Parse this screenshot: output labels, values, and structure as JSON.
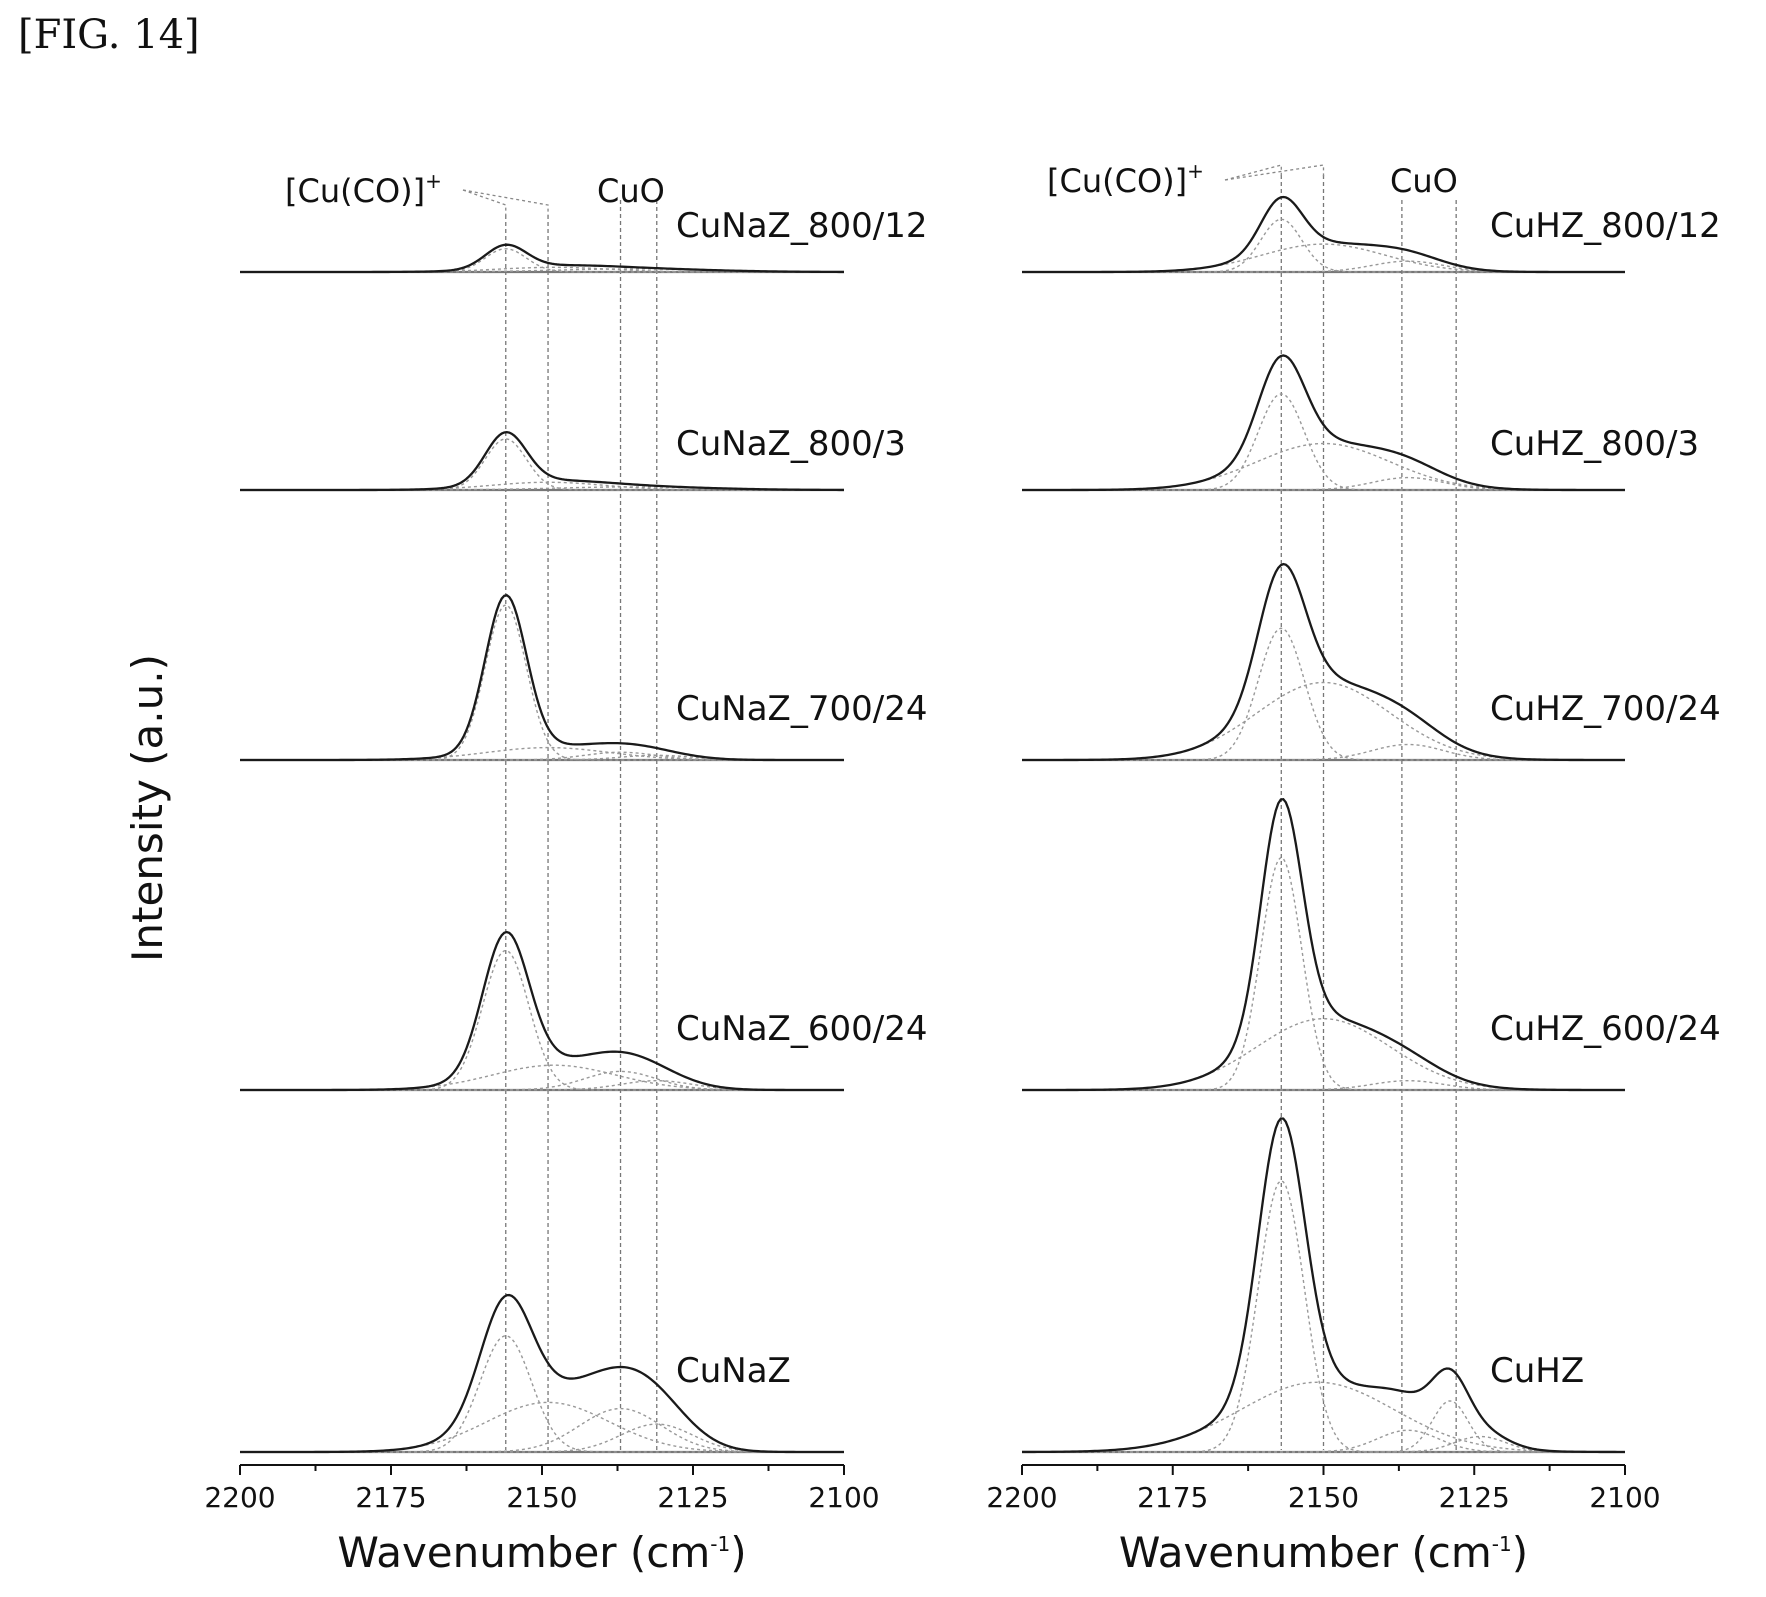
{
  "figure_label": "[FIG. 14]",
  "y_axis_title": "Intensity (a.u.)",
  "chart_data": [
    {
      "type": "line",
      "panel": "left",
      "xlabel": "Wavenumber (cm",
      "xlabel_sup": "-1",
      "xlabel_close": ")",
      "xlim": [
        2200,
        2100
      ],
      "x_ticks": [
        "2200",
        "2175",
        "2150",
        "2125",
        "2100"
      ],
      "annotations": {
        "cu_co_label": "[Cu(CO)]",
        "cu_co_sup": "+",
        "cuo_label": "CuO",
        "cu_co_positions": [
          2156,
          2149
        ],
        "cuo_positions": [
          2137,
          2131
        ]
      },
      "spectra": [
        {
          "name": "CuNaZ_800/12",
          "peaks": [
            {
              "center": 2156,
              "height": 0.15,
              "fwhm": 8
            },
            {
              "center": 2148,
              "height": 0.03,
              "fwhm": 22
            },
            {
              "center": 2135,
              "height": 0.02,
              "fwhm": 30
            }
          ]
        },
        {
          "name": "CuNaZ_800/3",
          "peaks": [
            {
              "center": 2156,
              "height": 0.33,
              "fwhm": 8
            },
            {
              "center": 2149,
              "height": 0.05,
              "fwhm": 22
            },
            {
              "center": 2135,
              "height": 0.02,
              "fwhm": 30
            }
          ]
        },
        {
          "name": "CuNaZ_700/24",
          "peaks": [
            {
              "center": 2156,
              "height": 1.0,
              "fwhm": 8
            },
            {
              "center": 2149,
              "height": 0.08,
              "fwhm": 24
            },
            {
              "center": 2137,
              "height": 0.05,
              "fwhm": 14
            },
            {
              "center": 2131,
              "height": 0.03,
              "fwhm": 14
            }
          ]
        },
        {
          "name": "CuNaZ_600/24",
          "peaks": [
            {
              "center": 2156,
              "height": 0.9,
              "fwhm": 9
            },
            {
              "center": 2148,
              "height": 0.16,
              "fwhm": 24
            },
            {
              "center": 2137,
              "height": 0.12,
              "fwhm": 14
            },
            {
              "center": 2131,
              "height": 0.06,
              "fwhm": 14
            }
          ]
        },
        {
          "name": "CuNaZ",
          "peaks": [
            {
              "center": 2156,
              "height": 0.75,
              "fwhm": 10
            },
            {
              "center": 2149,
              "height": 0.32,
              "fwhm": 24
            },
            {
              "center": 2137,
              "height": 0.28,
              "fwhm": 16
            },
            {
              "center": 2131,
              "height": 0.18,
              "fwhm": 14
            }
          ]
        }
      ]
    },
    {
      "type": "line",
      "panel": "right",
      "xlabel": "Wavenumber (cm",
      "xlabel_sup": "-1",
      "xlabel_close": ")",
      "xlim": [
        2200,
        2100
      ],
      "x_ticks": [
        "2200",
        "2175",
        "2150",
        "2125",
        "2100"
      ],
      "annotations": {
        "cu_co_label": "[Cu(CO)]",
        "cu_co_sup": "+",
        "cuo_label": "CuO",
        "cu_co_positions": [
          2157,
          2150
        ],
        "cuo_positions": [
          2137,
          2128
        ]
      },
      "spectra": [
        {
          "name": "CuHZ_800/12",
          "peaks": [
            {
              "center": 2157,
              "height": 0.34,
              "fwhm": 8
            },
            {
              "center": 2150,
              "height": 0.18,
              "fwhm": 24
            },
            {
              "center": 2136,
              "height": 0.07,
              "fwhm": 14
            }
          ]
        },
        {
          "name": "CuHZ_800/3",
          "peaks": [
            {
              "center": 2157,
              "height": 0.62,
              "fwhm": 9
            },
            {
              "center": 2150,
              "height": 0.3,
              "fwhm": 26
            },
            {
              "center": 2136,
              "height": 0.08,
              "fwhm": 14
            }
          ]
        },
        {
          "name": "CuHZ_700/24",
          "peaks": [
            {
              "center": 2157,
              "height": 0.85,
              "fwhm": 9
            },
            {
              "center": 2150,
              "height": 0.5,
              "fwhm": 26
            },
            {
              "center": 2136,
              "height": 0.1,
              "fwhm": 14
            }
          ]
        },
        {
          "name": "CuHZ_600/24",
          "peaks": [
            {
              "center": 2157,
              "height": 1.5,
              "fwhm": 8
            },
            {
              "center": 2150,
              "height": 0.46,
              "fwhm": 26
            },
            {
              "center": 2136,
              "height": 0.06,
              "fwhm": 14
            }
          ]
        },
        {
          "name": "CuHZ",
          "peaks": [
            {
              "center": 2157,
              "height": 1.75,
              "fwhm": 9
            },
            {
              "center": 2151,
              "height": 0.45,
              "fwhm": 30
            },
            {
              "center": 2136,
              "height": 0.14,
              "fwhm": 12
            },
            {
              "center": 2129,
              "height": 0.33,
              "fwhm": 7
            },
            {
              "center": 2124,
              "height": 0.1,
              "fwhm": 10
            }
          ]
        }
      ]
    }
  ]
}
